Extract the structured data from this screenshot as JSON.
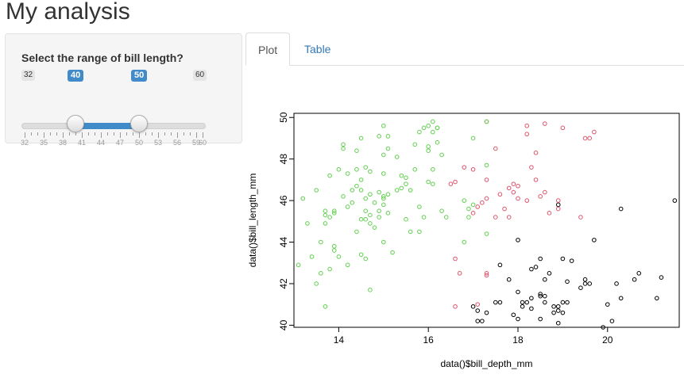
{
  "page_title": "My analysis",
  "sidebar": {
    "slider": {
      "label": "Select the range of bill length?",
      "min_label": "32",
      "max_label": "60",
      "from_label": "40",
      "to_label": "50",
      "min": 32,
      "max": 60,
      "from": 40,
      "to": 50,
      "grid_labels": [
        "32",
        "35",
        "38",
        "41",
        "44",
        "47",
        "50",
        "53",
        "56",
        "59",
        "60"
      ]
    }
  },
  "tabs": [
    {
      "label": "Plot",
      "active": true
    },
    {
      "label": "Table",
      "active": false
    }
  ],
  "colors": {
    "accent": "#428bca",
    "tab_link": "#337ab7",
    "point_black": "#000000",
    "point_red": "#df536b",
    "point_green": "#61d04f"
  },
  "chart_data": {
    "type": "scatter",
    "xlabel": "data()$bill_depth_mm",
    "ylabel": "data()$bill_length_mm",
    "xlim": [
      13.0,
      21.6
    ],
    "ylim": [
      39.9,
      50.2
    ],
    "xticks": [
      14,
      16,
      18,
      20
    ],
    "yticks": [
      40,
      42,
      44,
      46,
      48,
      50
    ],
    "xtick_labels": [
      "14",
      "16",
      "18",
      "20"
    ],
    "ytick_labels": [
      "40",
      "42",
      "44",
      "46",
      "48",
      "50"
    ],
    "series": [
      {
        "color": "#000000",
        "points": [
          [
            17.0,
            40.9
          ],
          [
            17.1,
            40.7
          ],
          [
            17.1,
            40.2
          ],
          [
            17.2,
            40.2
          ],
          [
            17.3,
            40.6
          ],
          [
            17.5,
            41.1
          ],
          [
            17.6,
            41.1
          ],
          [
            17.6,
            42.9
          ],
          [
            17.8,
            42.2
          ],
          [
            17.9,
            40.5
          ],
          [
            18.0,
            44.1
          ],
          [
            18.0,
            41.6
          ],
          [
            18.0,
            40.3
          ],
          [
            18.1,
            41.1
          ],
          [
            18.1,
            40.9
          ],
          [
            18.2,
            41.1
          ],
          [
            18.3,
            42.7
          ],
          [
            18.3,
            41.3
          ],
          [
            18.3,
            40.8
          ],
          [
            18.4,
            42.8
          ],
          [
            18.5,
            43.2
          ],
          [
            18.5,
            41.5
          ],
          [
            18.5,
            41.4
          ],
          [
            18.5,
            40.3
          ],
          [
            18.6,
            42.2
          ],
          [
            18.6,
            41.4
          ],
          [
            18.6,
            41.1
          ],
          [
            18.7,
            42.5
          ],
          [
            18.8,
            40.9
          ],
          [
            18.8,
            40.6
          ],
          [
            18.9,
            45.8
          ],
          [
            18.9,
            40.9
          ],
          [
            18.9,
            40.7
          ],
          [
            18.9,
            40.1
          ],
          [
            19.0,
            43.2
          ],
          [
            19.0,
            40.6
          ],
          [
            19.0,
            41.1
          ],
          [
            19.1,
            42.1
          ],
          [
            19.1,
            41.1
          ],
          [
            19.2,
            43.1
          ],
          [
            19.4,
            41.8
          ],
          [
            19.5,
            42.2
          ],
          [
            19.5,
            42.0
          ],
          [
            19.6,
            42.0
          ],
          [
            19.7,
            44.1
          ],
          [
            19.9,
            39.9
          ],
          [
            20.0,
            41.0
          ],
          [
            20.1,
            40.2
          ],
          [
            20.2,
            42.0
          ],
          [
            20.3,
            45.6
          ],
          [
            20.3,
            41.3
          ],
          [
            20.6,
            42.2
          ],
          [
            20.7,
            42.5
          ],
          [
            21.1,
            41.3
          ],
          [
            21.2,
            42.3
          ],
          [
            21.5,
            46.0
          ]
        ]
      },
      {
        "color": "#df536b",
        "points": [
          [
            16.5,
            46.8
          ],
          [
            16.6,
            46.9
          ],
          [
            16.6,
            40.9
          ],
          [
            16.6,
            43.2
          ],
          [
            16.7,
            42.5
          ],
          [
            16.8,
            47.6
          ],
          [
            17.0,
            45.4
          ],
          [
            17.0,
            47.5
          ],
          [
            17.1,
            41.0
          ],
          [
            17.1,
            45.7
          ],
          [
            17.2,
            45.9
          ],
          [
            17.3,
            46.1
          ],
          [
            17.3,
            49.8
          ],
          [
            17.3,
            47.0
          ],
          [
            17.3,
            42.4
          ],
          [
            17.3,
            42.5
          ],
          [
            17.5,
            45.2
          ],
          [
            17.5,
            48.5
          ],
          [
            17.6,
            46.3
          ],
          [
            17.7,
            45.6
          ],
          [
            17.8,
            46.6
          ],
          [
            17.8,
            45.2
          ],
          [
            17.9,
            46.4
          ],
          [
            17.9,
            46.8
          ],
          [
            18.0,
            46.7
          ],
          [
            18.0,
            46.1
          ],
          [
            18.2,
            46.0
          ],
          [
            18.2,
            49.6
          ],
          [
            18.2,
            49.2
          ],
          [
            18.3,
            47.6
          ],
          [
            18.4,
            47.0
          ],
          [
            18.4,
            48.3
          ],
          [
            18.5,
            46.2
          ],
          [
            18.6,
            49.7
          ],
          [
            18.6,
            46.4
          ],
          [
            18.7,
            45.4
          ],
          [
            18.9,
            45.6
          ],
          [
            18.9,
            46.0
          ],
          [
            19.0,
            49.5
          ],
          [
            19.4,
            45.2
          ],
          [
            19.5,
            49.0
          ],
          [
            19.6,
            49.0
          ],
          [
            19.7,
            49.3
          ]
        ]
      },
      {
        "color": "#61d04f",
        "points": [
          [
            13.1,
            42.9
          ],
          [
            13.2,
            46.1
          ],
          [
            13.3,
            44.9
          ],
          [
            13.4,
            43.3
          ],
          [
            13.5,
            46.5
          ],
          [
            13.5,
            42.0
          ],
          [
            13.6,
            42.5
          ],
          [
            13.6,
            44.0
          ],
          [
            13.7,
            44.9
          ],
          [
            13.7,
            45.5
          ],
          [
            13.7,
            45.3
          ],
          [
            13.7,
            40.9
          ],
          [
            13.8,
            42.7
          ],
          [
            13.8,
            45.2
          ],
          [
            13.8,
            47.2
          ],
          [
            13.9,
            45.4
          ],
          [
            13.9,
            43.8
          ],
          [
            13.9,
            43.6
          ],
          [
            13.9,
            45.5
          ],
          [
            14.0,
            47.5
          ],
          [
            14.0,
            43.3
          ],
          [
            14.1,
            46.2
          ],
          [
            14.1,
            48.5
          ],
          [
            14.1,
            48.7
          ],
          [
            14.2,
            47.3
          ],
          [
            14.2,
            45.7
          ],
          [
            14.2,
            42.9
          ],
          [
            14.3,
            45.9
          ],
          [
            14.3,
            46.5
          ],
          [
            14.4,
            46.7
          ],
          [
            14.4,
            44.5
          ],
          [
            14.4,
            48.4
          ],
          [
            14.4,
            47.5
          ],
          [
            14.5,
            45.1
          ],
          [
            14.5,
            43.4
          ],
          [
            14.5,
            46.5
          ],
          [
            14.5,
            49.0
          ],
          [
            14.5,
            47.0
          ],
          [
            14.6,
            46.1
          ],
          [
            14.6,
            45.5
          ],
          [
            14.6,
            43.2
          ],
          [
            14.6,
            47.6
          ],
          [
            14.6,
            45.1
          ],
          [
            14.7,
            45.3
          ],
          [
            14.7,
            46.3
          ],
          [
            14.7,
            44.9
          ],
          [
            14.7,
            47.4
          ],
          [
            14.7,
            41.7
          ],
          [
            14.8,
            44.7
          ],
          [
            14.8,
            45.9
          ],
          [
            14.9,
            45.2
          ],
          [
            14.9,
            46.4
          ],
          [
            14.9,
            49.1
          ],
          [
            14.9,
            45.5
          ],
          [
            15.0,
            44.0
          ],
          [
            15.0,
            46.2
          ],
          [
            15.0,
            48.2
          ],
          [
            15.0,
            49.6
          ],
          [
            15.0,
            46.1
          ],
          [
            15.0,
            47.3
          ],
          [
            15.0,
            45.8
          ],
          [
            15.1,
            46.3
          ],
          [
            15.1,
            45.4
          ],
          [
            15.1,
            49.1
          ],
          [
            15.1,
            48.5
          ],
          [
            15.2,
            43.5
          ],
          [
            15.3,
            46.5
          ],
          [
            15.3,
            48.1
          ],
          [
            15.4,
            47.2
          ],
          [
            15.4,
            46.6
          ],
          [
            15.5,
            47.1
          ],
          [
            15.5,
            45.1
          ],
          [
            15.5,
            46.8
          ],
          [
            15.6,
            46.5
          ],
          [
            15.6,
            44.5
          ],
          [
            15.7,
            47.5
          ],
          [
            15.7,
            48.7
          ],
          [
            15.8,
            49.3
          ],
          [
            15.8,
            45.7
          ],
          [
            15.8,
            44.5
          ],
          [
            15.9,
            49.5
          ],
          [
            15.9,
            45.2
          ],
          [
            16.0,
            46.9
          ],
          [
            16.0,
            49.6
          ],
          [
            16.0,
            48.6
          ],
          [
            16.0,
            48.4
          ],
          [
            16.1,
            49.8
          ],
          [
            16.1,
            47.5
          ],
          [
            16.1,
            46.8
          ],
          [
            16.1,
            49.3
          ],
          [
            16.2,
            49.5
          ],
          [
            16.2,
            48.8
          ],
          [
            16.2,
            49.5
          ],
          [
            16.3,
            48.2
          ],
          [
            16.3,
            45.5
          ],
          [
            16.4,
            45.2
          ],
          [
            16.8,
            44.0
          ],
          [
            16.8,
            46.0
          ],
          [
            16.9,
            45.2
          ],
          [
            16.9,
            45.6
          ],
          [
            17.0,
            45.8
          ],
          [
            17.0,
            49.0
          ],
          [
            17.3,
            49.8
          ],
          [
            17.3,
            47.7
          ],
          [
            17.3,
            44.4
          ]
        ]
      }
    ]
  }
}
